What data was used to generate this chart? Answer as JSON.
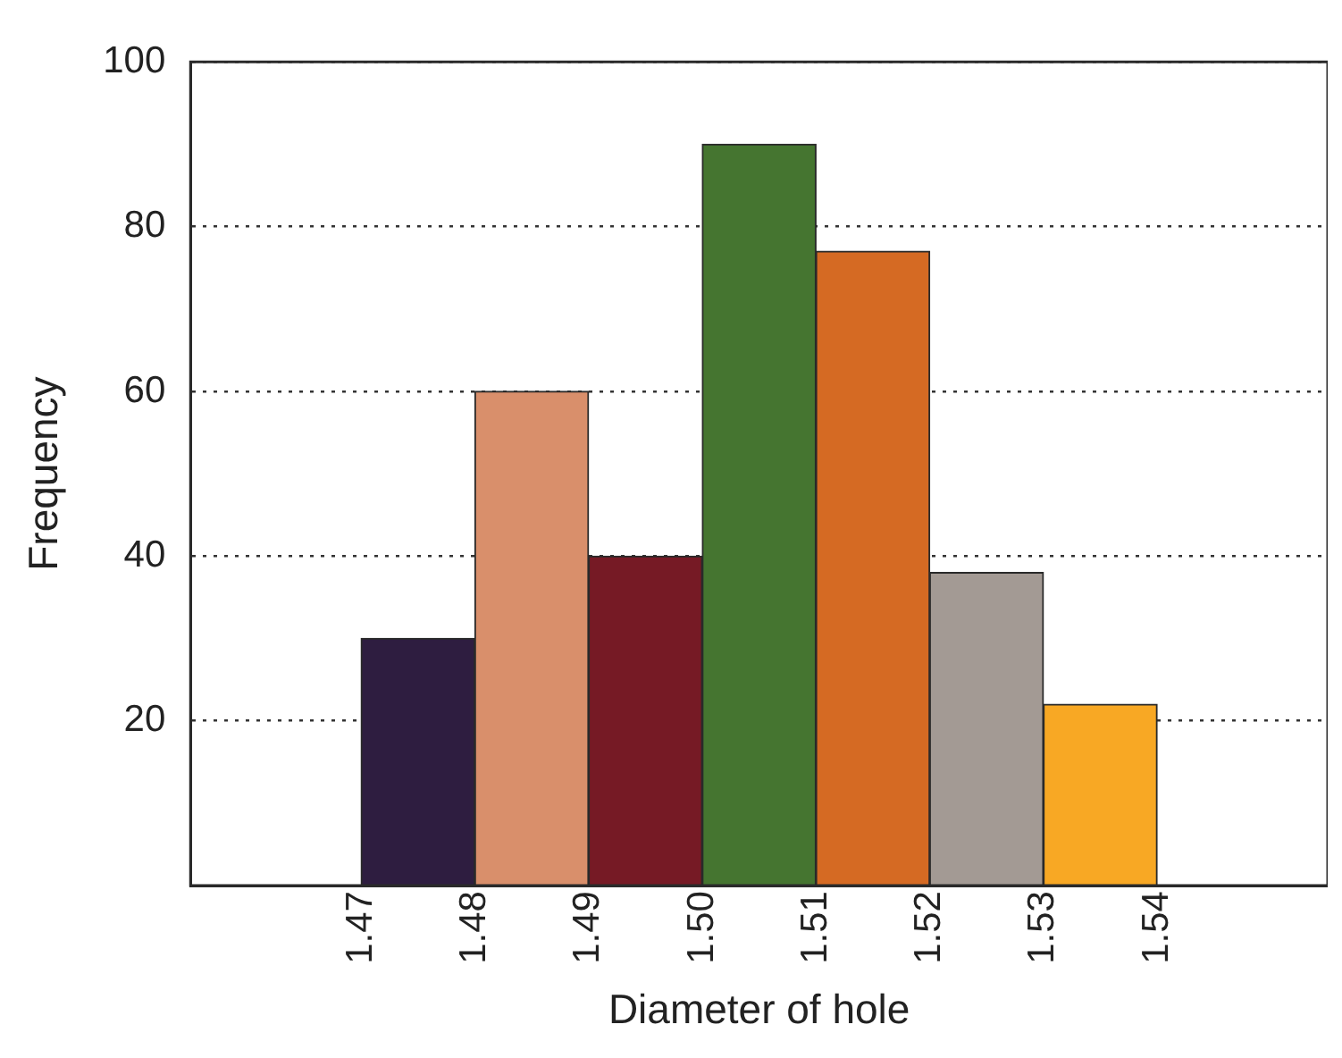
{
  "chart_data": {
    "type": "histogram",
    "xlabel": "Diameter of hole",
    "ylabel": "Frequency",
    "bins": [
      1.47,
      1.48,
      1.49,
      1.5,
      1.51,
      1.52,
      1.53,
      1.54
    ],
    "values": [
      30,
      60,
      40,
      90,
      77,
      38,
      22
    ],
    "colors": [
      "#2e1d40",
      "#d98f6b",
      "#761a25",
      "#457530",
      "#d56a23",
      "#a39a94",
      "#f8a824"
    ],
    "xlim": [
      1.455,
      1.555
    ],
    "xticks": [
      {
        "value": 1.47,
        "label": "1.47"
      },
      {
        "value": 1.48,
        "label": "1.48"
      },
      {
        "value": 1.49,
        "label": "1.49"
      },
      {
        "value": 1.5,
        "label": "1.50"
      },
      {
        "value": 1.51,
        "label": "1.51"
      },
      {
        "value": 1.52,
        "label": "1.52"
      },
      {
        "value": 1.53,
        "label": "1.53"
      },
      {
        "value": 1.54,
        "label": "1.54"
      }
    ],
    "ylim": [
      0,
      100
    ],
    "yticks": [
      20,
      40,
      60,
      80,
      100
    ],
    "grid": "y",
    "legend": false
  }
}
